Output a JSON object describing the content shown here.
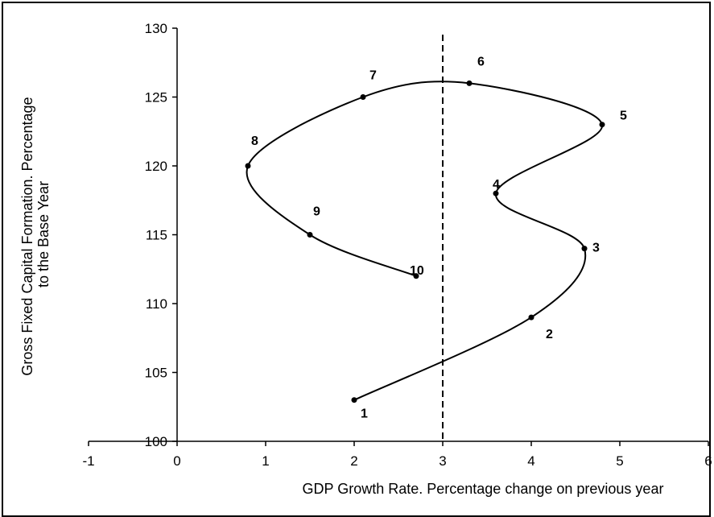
{
  "chart_data": {
    "type": "line",
    "title": "",
    "xlabel": "GDP Growth Rate. Percentage change on previous year",
    "ylabel_lines": [
      "Gross Fixed Capital Formation. Percentage",
      "to the Base Year"
    ],
    "xlim": [
      -1,
      6
    ],
    "ylim": [
      100,
      130
    ],
    "x_ticks": [
      -1,
      0,
      1,
      2,
      3,
      4,
      5,
      6
    ],
    "y_ticks": [
      100,
      105,
      110,
      115,
      120,
      125,
      130
    ],
    "grid": false,
    "reference_line": {
      "x": 3,
      "style": "dashed"
    },
    "series": [
      {
        "points": [
          {
            "label": "1",
            "x": 2.0,
            "y": 103
          },
          {
            "label": "2",
            "x": 4.0,
            "y": 109
          },
          {
            "label": "3",
            "x": 4.6,
            "y": 114
          },
          {
            "label": "4",
            "x": 3.6,
            "y": 118
          },
          {
            "label": "5",
            "x": 4.8,
            "y": 123
          },
          {
            "label": "6",
            "x": 3.3,
            "y": 126
          },
          {
            "label": "7",
            "x": 2.1,
            "y": 125
          },
          {
            "label": "8",
            "x": 0.8,
            "y": 120
          },
          {
            "label": "9",
            "x": 1.5,
            "y": 115
          },
          {
            "label": "10",
            "x": 2.7,
            "y": 112
          }
        ]
      }
    ],
    "colors": {
      "line": "#000000",
      "marker": "#000000"
    }
  }
}
